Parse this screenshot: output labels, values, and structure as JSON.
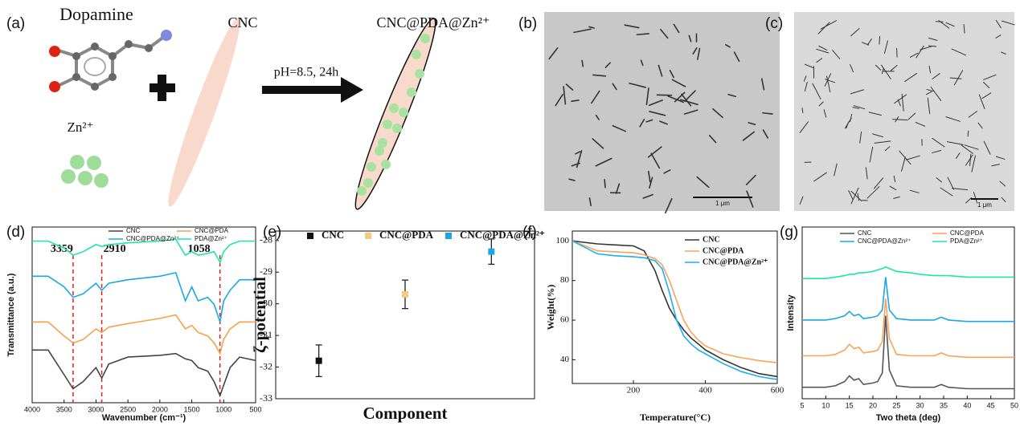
{
  "panel_labels": [
    "(a)",
    "(b)",
    "(c)",
    "(d)",
    "(e)",
    "(f)",
    "(g)"
  ],
  "schematic": {
    "dopamine": "Dopamine",
    "zn": "Zn²⁺",
    "cnc": "CNC",
    "product": "CNC@PDA@Zn²⁺",
    "condition": "pH=8.5, 24h"
  },
  "micrographs": [
    {
      "scale_bar": "1 μm"
    },
    {
      "scale_bar": "1 μm"
    }
  ],
  "chart_data": [
    {
      "type": "line",
      "xlabel": "Wavenumber (cm⁻¹)",
      "ylabel": "Transmittance (a.u.)",
      "xlim": [
        4000,
        500
      ],
      "xticks": [
        4000,
        3500,
        3000,
        2500,
        2000,
        1500,
        1000,
        500
      ],
      "ylim": [
        0,
        100
      ],
      "x": [
        4000,
        3750,
        3500,
        3359,
        3200,
        3000,
        2910,
        2800,
        2500,
        2000,
        1750,
        1600,
        1500,
        1400,
        1250,
        1150,
        1058,
        1000,
        900,
        750,
        500
      ],
      "series": [
        {
          "name": "CNC",
          "color": "#444444",
          "values": [
            30,
            30,
            16,
            8,
            12,
            20,
            14,
            22,
            26,
            27,
            28,
            25,
            24,
            20,
            18,
            12,
            4,
            10,
            20,
            26,
            24
          ]
        },
        {
          "name": "CNC@PDA",
          "color": "#f5a04a",
          "values": [
            46,
            46,
            38,
            34,
            36,
            42,
            40,
            43,
            45,
            48,
            50,
            42,
            44,
            40,
            38,
            34,
            28,
            36,
            42,
            46,
            46
          ]
        },
        {
          "name": "CNC@PDA@Zn²⁺",
          "color": "#1aa7e6",
          "values": [
            72,
            72,
            66,
            60,
            62,
            68,
            64,
            68,
            70,
            72,
            74,
            58,
            66,
            58,
            60,
            56,
            46,
            58,
            64,
            70,
            70
          ]
        },
        {
          "name": "PDA@Zn²⁺",
          "color": "#1ee6a8",
          "values": [
            92,
            92,
            88,
            84,
            86,
            90,
            89,
            90,
            91,
            92,
            93,
            84,
            86,
            84,
            85,
            86,
            80,
            86,
            90,
            92,
            92
          ]
        }
      ],
      "annotations": [
        {
          "label": "3359",
          "x": 3359
        },
        {
          "label": "2910",
          "x": 2910
        },
        {
          "label": "1058",
          "x": 1058
        }
      ]
    },
    {
      "type": "scatter",
      "xlabel": "Component",
      "ylabel": "ζ-potential",
      "xlim": [
        0.5,
        3.5
      ],
      "ylim": [
        -33,
        -27.7
      ],
      "yticks": [
        -33,
        -32,
        -31,
        -30,
        -29,
        -28
      ],
      "series": [
        {
          "name": "CNC",
          "color": "#111111",
          "x": [
            1
          ],
          "values": [
            -31.8
          ],
          "errors": [
            0.5
          ]
        },
        {
          "name": "CNC@PDA",
          "color": "#f7c97e",
          "x": [
            2
          ],
          "values": [
            -29.7
          ],
          "errors": [
            0.45
          ]
        },
        {
          "name": "CNC@PDA@Zn²⁺",
          "color": "#1ba8e0",
          "x": [
            3
          ],
          "values": [
            -28.35
          ],
          "errors": [
            0.4
          ]
        }
      ]
    },
    {
      "type": "line",
      "xlabel": "Temperature(°C)",
      "ylabel": "Weight(%)",
      "xlim": [
        30,
        600
      ],
      "xticks": [
        200,
        400,
        600
      ],
      "ylim": [
        28,
        105
      ],
      "yticks": [
        40,
        60,
        80,
        100
      ],
      "x": [
        30,
        100,
        150,
        200,
        230,
        260,
        280,
        300,
        320,
        340,
        360,
        380,
        400,
        450,
        500,
        550,
        600
      ],
      "series": [
        {
          "name": "CNC",
          "color": "#333333",
          "values": [
            100,
            98.5,
            98,
            97.5,
            95,
            85,
            75,
            66,
            60,
            55,
            51,
            48,
            45,
            40,
            36,
            33,
            31.5
          ]
        },
        {
          "name": "CNC@PDA",
          "color": "#f7a35c",
          "values": [
            100,
            95,
            94.5,
            94,
            93,
            91,
            88,
            80,
            70,
            60,
            54,
            50,
            47,
            43,
            41,
            39.5,
            38.5
          ]
        },
        {
          "name": "CNC@PDA@Zn²⁺",
          "color": "#1ab0ee",
          "values": [
            100,
            93.5,
            92.5,
            92,
            91.5,
            90,
            86,
            74,
            60,
            52,
            48,
            45,
            43,
            38,
            34,
            31.5,
            30
          ]
        }
      ]
    },
    {
      "type": "line",
      "xlabel": "Two theta (deg)",
      "ylabel": "Intensity",
      "xlim": [
        5,
        50
      ],
      "xticks": [
        5,
        10,
        15,
        20,
        25,
        30,
        35,
        40,
        45,
        50
      ],
      "ylim": [
        0,
        120
      ],
      "x": [
        5,
        8,
        10,
        12,
        14,
        15,
        16,
        17,
        18,
        20,
        21,
        22,
        22.7,
        23.5,
        25,
        28,
        30,
        33,
        34.5,
        36,
        40,
        45,
        50
      ],
      "series": [
        {
          "name": "CNC",
          "color": "#555555",
          "values": [
            8,
            8,
            8,
            9,
            12,
            16,
            13,
            14,
            10,
            11,
            12,
            18,
            58,
            20,
            9,
            8,
            8,
            8,
            10,
            8,
            7,
            7,
            7
          ]
        },
        {
          "name": "CNC@PDA",
          "color": "#f7a35c",
          "values": [
            30,
            30,
            30,
            31,
            34,
            38,
            35,
            36,
            32,
            33,
            34,
            40,
            70,
            42,
            31,
            30,
            30,
            30,
            32,
            30,
            29,
            29,
            29
          ]
        },
        {
          "name": "CNC@PDA@Zn²⁺",
          "color": "#1aa7e6",
          "values": [
            55,
            55,
            55,
            56,
            58,
            61,
            58,
            59,
            56,
            57,
            58,
            62,
            85,
            62,
            56,
            55,
            55,
            55,
            57,
            55,
            54,
            54,
            54
          ]
        },
        {
          "name": "PDA@Zn²⁺",
          "color": "#1ee6a8",
          "values": [
            84,
            84,
            84,
            85,
            86,
            87,
            87,
            88,
            88,
            89,
            90,
            91,
            92,
            91,
            89,
            88,
            87,
            86,
            86,
            86,
            85,
            85,
            85
          ]
        }
      ]
    }
  ]
}
